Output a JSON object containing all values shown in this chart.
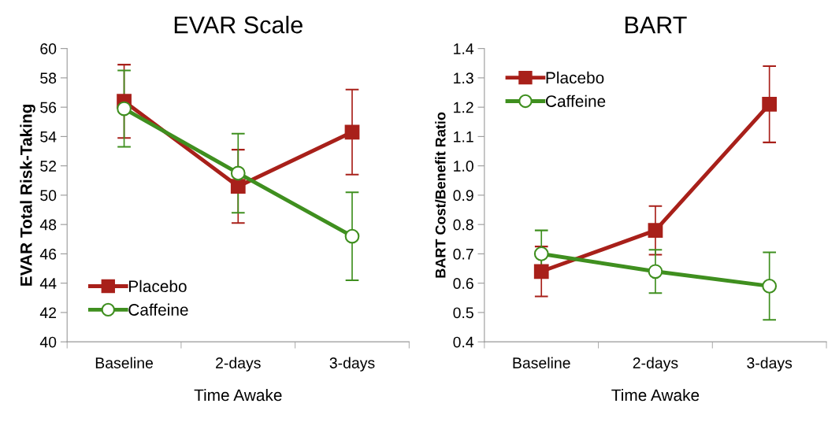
{
  "chart_data": [
    {
      "type": "line",
      "title": "EVAR Scale",
      "xlabel": "Time Awake",
      "ylabel": "EVAR Total Risk-Taking",
      "categories": [
        "Baseline",
        "2-days",
        "3-days"
      ],
      "series": [
        {
          "name": "Placebo",
          "color": "#a8201a",
          "marker": "square",
          "values": [
            56.4,
            50.6,
            54.3
          ],
          "errors": [
            2.5,
            2.5,
            2.9
          ]
        },
        {
          "name": "Caffeine",
          "color": "#3f8f1f",
          "marker": "circle",
          "values": [
            55.9,
            51.5,
            47.2
          ],
          "errors": [
            2.6,
            2.7,
            3.0
          ]
        }
      ],
      "ylim": [
        40,
        60
      ],
      "yticks": [
        40,
        42,
        44,
        46,
        48,
        50,
        52,
        54,
        56,
        58,
        60
      ],
      "grid": false,
      "legend": "bottom left",
      "line_style": "solid"
    },
    {
      "type": "line",
      "title": "BART",
      "xlabel": "Time Awake",
      "ylabel": "BART Cost/Benefit Ratio",
      "categories": [
        "Baseline",
        "2-days",
        "3-days"
      ],
      "series": [
        {
          "name": "Placebo",
          "color": "#a8201a",
          "marker": "square",
          "values": [
            0.64,
            0.78,
            1.21
          ],
          "errors": [
            0.085,
            0.083,
            0.13
          ]
        },
        {
          "name": "Caffeine",
          "color": "#3f8f1f",
          "marker": "circle",
          "values": [
            0.7,
            0.64,
            0.59
          ],
          "errors": [
            0.08,
            0.074,
            0.115
          ]
        }
      ],
      "ylim": [
        0.4,
        1.4
      ],
      "yticks": [
        {
          "value": 0.4,
          "label": "0.4"
        },
        {
          "value": 0.5,
          "label": "0.5"
        },
        {
          "value": 0.6,
          "label": "0.6"
        },
        {
          "value": 0.7,
          "label": "0.7"
        },
        {
          "value": 0.8,
          "label": "0.8"
        },
        {
          "value": 0.9,
          "label": "0.9"
        },
        {
          "value": 1.0,
          "label": "1.0"
        },
        {
          "value": 1.1,
          "label": "1.1"
        },
        {
          "value": 1.2,
          "label": "1.2"
        },
        {
          "value": 1.3,
          "label": "1.3"
        },
        {
          "value": 1.4,
          "label": "1.4"
        }
      ],
      "grid": false,
      "legend": "top left",
      "line_style": "solid"
    }
  ]
}
